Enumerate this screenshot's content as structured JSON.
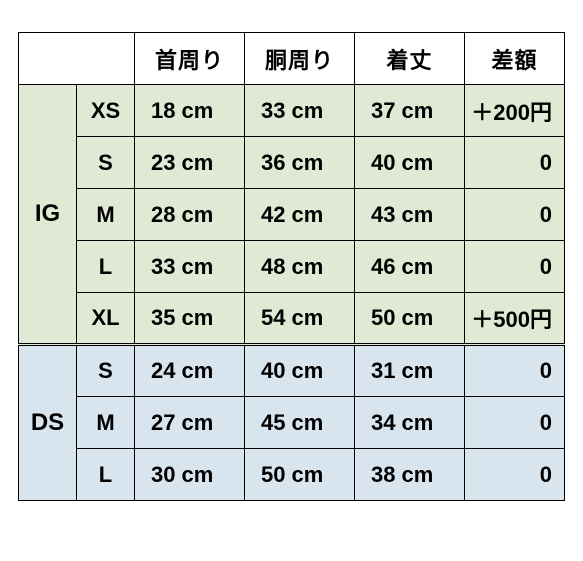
{
  "headers": {
    "c0": "",
    "c1": "",
    "neck": "首周り",
    "body": "胴周り",
    "length": "着丈",
    "diff": "差額"
  },
  "unit": "cm",
  "groups": [
    {
      "label": "IG",
      "bg": "bg-ig",
      "rows": [
        {
          "size": "XS",
          "neck": "18",
          "body": "33",
          "length": "37",
          "diff": "＋200円"
        },
        {
          "size": "S",
          "neck": "23",
          "body": "36",
          "length": "40",
          "diff": "0"
        },
        {
          "size": "M",
          "neck": "28",
          "body": "42",
          "length": "43",
          "diff": "0"
        },
        {
          "size": "L",
          "neck": "33",
          "body": "48",
          "length": "46",
          "diff": "0"
        },
        {
          "size": "XL",
          "neck": "35",
          "body": "54",
          "length": "50",
          "diff": "＋500円"
        }
      ]
    },
    {
      "label": "DS",
      "bg": "bg-ds",
      "rows": [
        {
          "size": "S",
          "neck": "24",
          "body": "40",
          "length": "31",
          "diff": "0"
        },
        {
          "size": "M",
          "neck": "27",
          "body": "45",
          "length": "34",
          "diff": "0"
        },
        {
          "size": "L",
          "neck": "30",
          "body": "50",
          "length": "38",
          "diff": "0"
        }
      ]
    }
  ]
}
